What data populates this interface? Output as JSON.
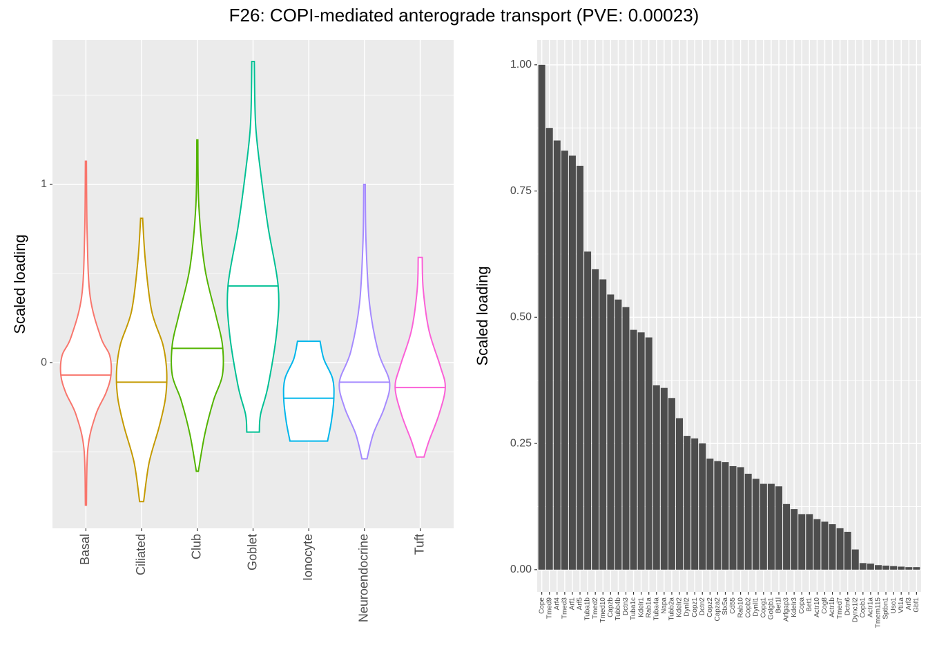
{
  "title": "F26: COPI-mediated anterograde transport (PVE: 0.00023)",
  "chart_data": [
    {
      "type": "violin",
      "ylabel": "Scaled loading",
      "categories": [
        "Basal",
        "Ciliated",
        "Club",
        "Goblet",
        "Ionocyte",
        "Neuroendocrine",
        "Tuft"
      ],
      "colors": [
        "#F8766D",
        "#C49A00",
        "#53B400",
        "#00C094",
        "#00B6EB",
        "#A58AFF",
        "#FB61D7"
      ],
      "ylim": [
        -0.93,
        1.81
      ],
      "yticks": [
        0,
        1
      ],
      "minor_yticks": [
        -0.5,
        0.5,
        1.5
      ],
      "grid": true,
      "violins": [
        {
          "median": -0.07,
          "density": [
            [
              1.13,
              0.02
            ],
            [
              0.72,
              0.05
            ],
            [
              0.37,
              0.17
            ],
            [
              0.14,
              0.6
            ],
            [
              0.04,
              0.95
            ],
            [
              -0.07,
              1.0
            ],
            [
              -0.17,
              0.8
            ],
            [
              -0.29,
              0.4
            ],
            [
              -0.48,
              0.08
            ],
            [
              -0.8,
              0.02
            ]
          ]
        },
        {
          "median": -0.11,
          "density": [
            [
              0.81,
              0.04
            ],
            [
              0.57,
              0.15
            ],
            [
              0.29,
              0.4
            ],
            [
              0.1,
              0.85
            ],
            [
              -0.05,
              1.0
            ],
            [
              -0.2,
              0.95
            ],
            [
              -0.36,
              0.7
            ],
            [
              -0.56,
              0.3
            ],
            [
              -0.78,
              0.08
            ]
          ]
        },
        {
          "median": 0.08,
          "density": [
            [
              1.25,
              0.02
            ],
            [
              0.88,
              0.06
            ],
            [
              0.53,
              0.3
            ],
            [
              0.26,
              0.75
            ],
            [
              0.1,
              1.0
            ],
            [
              -0.07,
              1.0
            ],
            [
              -0.21,
              0.65
            ],
            [
              -0.4,
              0.3
            ],
            [
              -0.61,
              0.04
            ]
          ]
        },
        {
          "median": 0.43,
          "density": [
            [
              1.69,
              0.05
            ],
            [
              1.34,
              0.1
            ],
            [
              1.07,
              0.3
            ],
            [
              0.76,
              0.6
            ],
            [
              0.43,
              1.0
            ],
            [
              0.18,
              0.95
            ],
            [
              -0.13,
              0.6
            ],
            [
              -0.29,
              0.3
            ],
            [
              -0.39,
              0.25
            ]
          ]
        },
        {
          "median": -0.2,
          "density": [
            [
              0.12,
              0.45
            ],
            [
              0.02,
              0.6
            ],
            [
              -0.09,
              0.95
            ],
            [
              -0.2,
              1.0
            ],
            [
              -0.33,
              0.9
            ],
            [
              -0.44,
              0.75
            ]
          ]
        },
        {
          "median": -0.11,
          "density": [
            [
              1.0,
              0.03
            ],
            [
              0.68,
              0.06
            ],
            [
              0.33,
              0.2
            ],
            [
              0.06,
              0.55
            ],
            [
              -0.11,
              1.0
            ],
            [
              -0.25,
              0.8
            ],
            [
              -0.4,
              0.35
            ],
            [
              -0.54,
              0.1
            ]
          ]
        },
        {
          "median": -0.14,
          "density": [
            [
              0.59,
              0.08
            ],
            [
              0.41,
              0.12
            ],
            [
              0.18,
              0.35
            ],
            [
              -0.02,
              0.8
            ],
            [
              -0.14,
              1.0
            ],
            [
              -0.29,
              0.75
            ],
            [
              -0.44,
              0.35
            ],
            [
              -0.53,
              0.15
            ]
          ]
        }
      ]
    },
    {
      "type": "bar",
      "ylabel": "Scaled loading",
      "color": "#4d4d4d",
      "categories": [
        "Cope",
        "Tmed9",
        "Arf4",
        "Tmed3",
        "Arf1",
        "Arf5",
        "Tuba1b",
        "Tmed2",
        "Tmed10",
        "Capzb",
        "Tubb4b",
        "Dctn3",
        "Tuba1c",
        "Kdelr1",
        "Rab1a",
        "Tuba4a",
        "Napa",
        "Tubb2a",
        "Kdelr2",
        "Dynll2",
        "Copz1",
        "Dctn2",
        "Copz2",
        "Capza2",
        "Stx5a",
        "Cd55",
        "Rab10",
        "Copb2",
        "Dynll1",
        "Copg1",
        "Golgb1",
        "Bet1l",
        "Arfgap3",
        "Kdelr3",
        "Copa",
        "Bet1",
        "Actr10",
        "Cog8",
        "Actr1b",
        "Tmed7",
        "Dctn6",
        "Dync1i2",
        "Copb1",
        "Actr1a",
        "Tmem115",
        "Sptbn1",
        "Uso1",
        "Vti1a",
        "Arf3",
        "Gbf1"
      ],
      "values": [
        1.0,
        0.875,
        0.85,
        0.83,
        0.82,
        0.8,
        0.63,
        0.595,
        0.575,
        0.545,
        0.535,
        0.52,
        0.475,
        0.47,
        0.46,
        0.365,
        0.36,
        0.34,
        0.3,
        0.265,
        0.26,
        0.25,
        0.22,
        0.215,
        0.213,
        0.205,
        0.203,
        0.19,
        0.18,
        0.17,
        0.17,
        0.165,
        0.13,
        0.12,
        0.11,
        0.11,
        0.1,
        0.095,
        0.09,
        0.082,
        0.075,
        0.04,
        0.013,
        0.012,
        0.009,
        0.008,
        0.007,
        0.006,
        0.005,
        0.005
      ],
      "ylim": [
        -0.044,
        1.049
      ],
      "yticks": [
        {
          "value": 0,
          "label": "0.00"
        },
        {
          "value": 0.25,
          "label": "0.25"
        },
        {
          "value": 0.5,
          "label": "0.50"
        },
        {
          "value": 0.75,
          "label": "0.75"
        },
        {
          "value": 1,
          "label": "1.00"
        }
      ],
      "minor_yticks": [
        0.125,
        0.375,
        0.625,
        0.875
      ],
      "grid": true
    }
  ]
}
